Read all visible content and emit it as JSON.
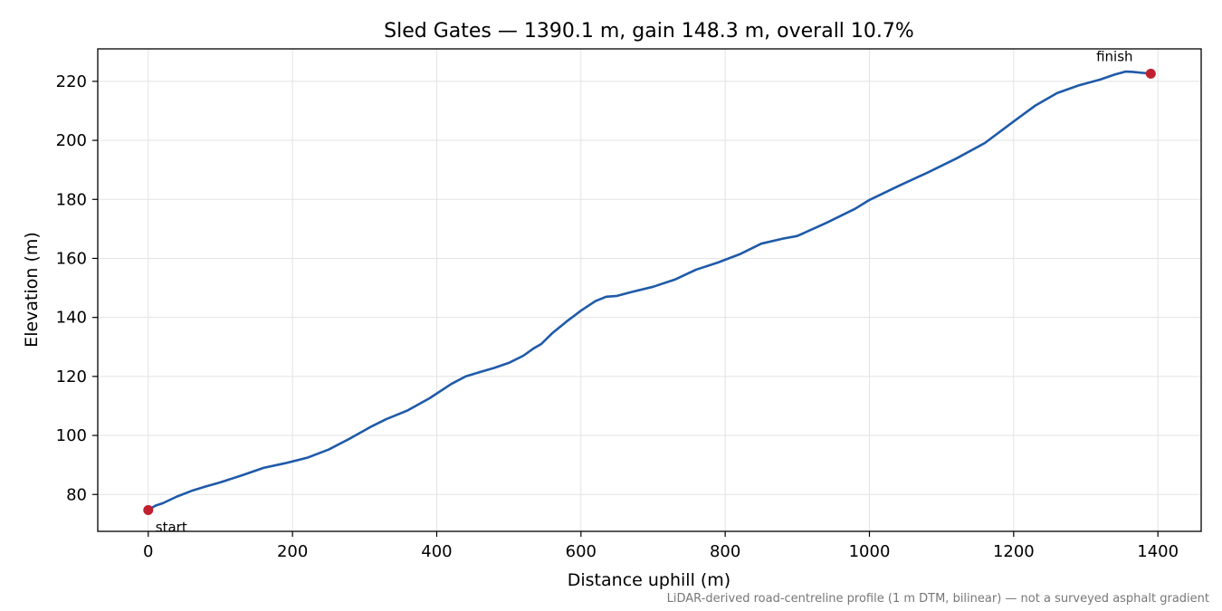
{
  "chart_data": {
    "type": "line",
    "title": "Sled Gates — 1390.1 m, gain 148.3 m, overall 10.7%",
    "xlabel": "Distance uphill (m)",
    "ylabel": "Elevation (m)",
    "xlim": [
      -70,
      1460
    ],
    "ylim": [
      67.5,
      231
    ],
    "xticks": [
      0,
      200,
      400,
      600,
      800,
      1000,
      1200,
      1400
    ],
    "yticks": [
      80,
      100,
      120,
      140,
      160,
      180,
      200,
      220
    ],
    "grid": true,
    "line_color": "#1f5aa8",
    "marker_color": "#c0202f",
    "series": [
      {
        "x": [
          0,
          10,
          20,
          40,
          60,
          80,
          100,
          130,
          160,
          190,
          220,
          250,
          280,
          310,
          330,
          360,
          390,
          420,
          440,
          460,
          480,
          500,
          520,
          535,
          545,
          560,
          580,
          600,
          620,
          635,
          650,
          670,
          700,
          730,
          760,
          790,
          820,
          850,
          880,
          900,
          940,
          980,
          1000,
          1040,
          1080,
          1120,
          1160,
          1200,
          1230,
          1260,
          1290,
          1320,
          1340,
          1355,
          1365,
          1390.1
        ],
        "y": [
          74.7,
          76.2,
          77.0,
          79.3,
          81.2,
          82.7,
          84.1,
          86.5,
          89.0,
          90.6,
          92.4,
          95.2,
          99.0,
          103.1,
          105.5,
          108.5,
          112.6,
          117.4,
          120.0,
          121.5,
          122.9,
          124.6,
          127.0,
          129.6,
          131.0,
          134.6,
          138.6,
          142.3,
          145.5,
          147.0,
          147.3,
          148.6,
          150.4,
          152.8,
          156.2,
          158.6,
          161.4,
          165.0,
          166.7,
          167.6,
          172.0,
          176.8,
          179.8,
          184.5,
          189.0,
          193.8,
          199.1,
          206.4,
          211.8,
          216.0,
          218.6,
          220.6,
          222.3,
          223.3,
          223.2,
          222.6
        ]
      }
    ],
    "annotations": [
      {
        "label": "start",
        "x": 0,
        "y": 74.7
      },
      {
        "label": "finish",
        "x": 1390.1,
        "y": 222.6
      }
    ],
    "footnote": "LiDAR-derived road-centreline profile (1 m DTM, bilinear) — not a surveyed asphalt gradient"
  }
}
